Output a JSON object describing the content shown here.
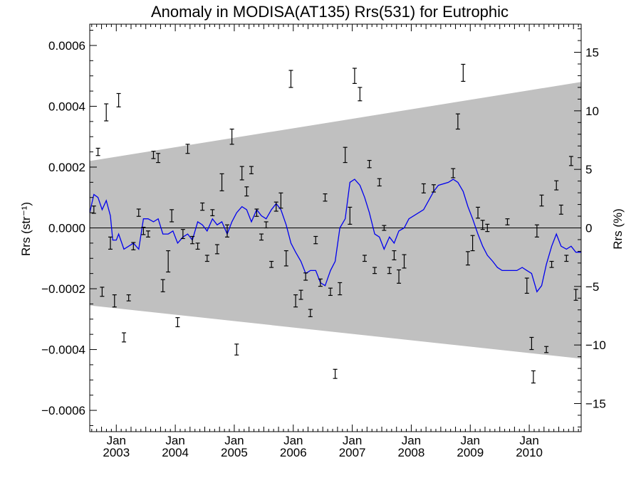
{
  "chart_data": {
    "type": "scatter",
    "title": "Anomaly in MODISA(AT135) Rrs(531) for Eutrophic",
    "ylabel": "Rrs (str⁻¹)",
    "ylabel_right": "Rrs (%)",
    "x_range": [
      2002.55,
      2010.88
    ],
    "ylim": [
      -0.00067,
      0.00067
    ],
    "ylim_right": [
      -17.4,
      17.4
    ],
    "y_ticks": [
      {
        "value": 0.0006,
        "label": "0.0006"
      },
      {
        "value": 0.0004,
        "label": "0.0004"
      },
      {
        "value": 0.0002,
        "label": "0.0002"
      },
      {
        "value": 0.0,
        "label": "0.0000"
      },
      {
        "value": -0.0002,
        "label": "−0.0002"
      },
      {
        "value": -0.0004,
        "label": "−0.0004"
      },
      {
        "value": -0.0006,
        "label": "−0.0006"
      }
    ],
    "y_right_ticks": [
      {
        "value": 15,
        "label": "15"
      },
      {
        "value": 10,
        "label": "10"
      },
      {
        "value": 5,
        "label": "5"
      },
      {
        "value": 0,
        "label": "0"
      },
      {
        "value": -5,
        "label": "−5"
      },
      {
        "value": -10,
        "label": "−10"
      },
      {
        "value": -15,
        "label": "−15"
      }
    ],
    "x_ticks": [
      {
        "value": 2003.0,
        "month": "Jan",
        "year": "2003"
      },
      {
        "value": 2004.0,
        "month": "Jan",
        "year": "2004"
      },
      {
        "value": 2005.0,
        "month": "Jan",
        "year": "2005"
      },
      {
        "value": 2006.0,
        "month": "Jan",
        "year": "2006"
      },
      {
        "value": 2007.0,
        "month": "Jan",
        "year": "2007"
      },
      {
        "value": 2008.0,
        "month": "Jan",
        "year": "2008"
      },
      {
        "value": 2009.0,
        "month": "Jan",
        "year": "2009"
      },
      {
        "value": 2010.0,
        "month": "Jan",
        "year": "2010"
      }
    ],
    "band": {
      "upper": [
        [
          2002.55,
          0.00022
        ],
        [
          2010.88,
          0.00048
        ]
      ],
      "lower": [
        [
          2002.55,
          -0.000255
        ],
        [
          2010.88,
          -0.00043
        ]
      ],
      "color": "#c0c0c0"
    },
    "line_color": "#0000ee",
    "series": [
      {
        "kind": "errorbar",
        "points": [
          [
            2002.62,
            6e-05,
            1.2e-05
          ],
          [
            2002.69,
            0.00025,
            1.2e-05
          ],
          [
            2002.76,
            -0.00021,
            1.5e-05
          ],
          [
            2002.83,
            0.00038,
            2.8e-05
          ],
          [
            2002.9,
            -5e-05,
            2e-05
          ],
          [
            2002.97,
            -0.00024,
            2e-05
          ],
          [
            2003.04,
            0.00042,
            2.2e-05
          ],
          [
            2003.13,
            -0.00036,
            1.5e-05
          ],
          [
            2003.21,
            -0.00023,
            1e-05
          ],
          [
            2003.29,
            -6e-05,
            1.2e-05
          ],
          [
            2003.38,
            5e-05,
            1.2e-05
          ],
          [
            2003.46,
            -1e-05,
            1.2e-05
          ],
          [
            2003.54,
            -2e-05,
            1e-05
          ],
          [
            2003.63,
            0.00024,
            1.2e-05
          ],
          [
            2003.71,
            0.00023,
            1.5e-05
          ],
          [
            2003.79,
            -0.00019,
            2e-05
          ],
          [
            2003.88,
            -0.00011,
            3.5e-05
          ],
          [
            2003.94,
            4e-05,
            2e-05
          ],
          [
            2004.04,
            -0.00031,
            1.5e-05
          ],
          [
            2004.13,
            -2e-05,
            1.5e-05
          ],
          [
            2004.21,
            0.00026,
            1.5e-05
          ],
          [
            2004.29,
            -4e-05,
            1.2e-05
          ],
          [
            2004.38,
            -6e-05,
            1e-05
          ],
          [
            2004.46,
            7e-05,
            1.2e-05
          ],
          [
            2004.54,
            -0.0001,
            1e-05
          ],
          [
            2004.63,
            5e-05,
            1e-05
          ],
          [
            2004.71,
            -7e-05,
            1.5e-05
          ],
          [
            2004.79,
            0.00015,
            2.8e-05
          ],
          [
            2004.88,
            -1e-05,
            2e-05
          ],
          [
            2004.96,
            0.0003,
            2.5e-05
          ],
          [
            2005.04,
            -0.0004,
            1.8e-05
          ],
          [
            2005.13,
            0.00018,
            2.2e-05
          ],
          [
            2005.21,
            0.00012,
            1.5e-05
          ],
          [
            2005.29,
            0.00019,
            1.2e-05
          ],
          [
            2005.38,
            5e-05,
            1.2e-05
          ],
          [
            2005.46,
            -3e-05,
            1e-05
          ],
          [
            2005.54,
            1e-05,
            1e-05
          ],
          [
            2005.63,
            -0.00012,
            1e-05
          ],
          [
            2005.71,
            7e-05,
            1.5e-05
          ],
          [
            2005.79,
            9e-05,
            2.5e-05
          ],
          [
            2005.88,
            -0.0001,
            2.5e-05
          ],
          [
            2005.96,
            0.00049,
            2.8e-05
          ],
          [
            2006.04,
            -0.00024,
            2e-05
          ],
          [
            2006.13,
            -0.00022,
            1.5e-05
          ],
          [
            2006.21,
            -0.00016,
            1.2e-05
          ],
          [
            2006.29,
            -0.00028,
            1.2e-05
          ],
          [
            2006.38,
            -4e-05,
            1.2e-05
          ],
          [
            2006.46,
            -0.00018,
            1.2e-05
          ],
          [
            2006.54,
            0.0001,
            1.2e-05
          ],
          [
            2006.63,
            -0.00021,
            1.2e-05
          ],
          [
            2006.71,
            -0.00048,
            1.5e-05
          ],
          [
            2006.79,
            -0.0002,
            2e-05
          ],
          [
            2006.88,
            0.00024,
            2.5e-05
          ],
          [
            2006.96,
            4e-05,
            2.8e-05
          ],
          [
            2007.04,
            0.0005,
            2.5e-05
          ],
          [
            2007.13,
            0.00044,
            2.2e-05
          ],
          [
            2007.21,
            -0.0001,
            1e-05
          ],
          [
            2007.29,
            0.00021,
            1.2e-05
          ],
          [
            2007.38,
            -0.00014,
            1e-05
          ],
          [
            2007.46,
            0.00015,
            1.2e-05
          ],
          [
            2007.54,
            0.0,
            8e-06
          ],
          [
            2007.63,
            -0.00014,
            1e-05
          ],
          [
            2007.71,
            -9e-05,
            1.5e-05
          ],
          [
            2007.79,
            -0.00016,
            2.2e-05
          ],
          [
            2007.88,
            -0.00011,
            2.2e-05
          ],
          [
            2008.21,
            0.00013,
            1.5e-05
          ],
          [
            2008.38,
            0.00013,
            1.2e-05
          ],
          [
            2008.71,
            0.00018,
            1.5e-05
          ],
          [
            2008.79,
            0.00035,
            2.5e-05
          ],
          [
            2008.88,
            0.00051,
            2.8e-05
          ],
          [
            2008.96,
            -0.0001,
            2.2e-05
          ],
          [
            2009.04,
            -5e-05,
            2.5e-05
          ],
          [
            2009.13,
            5e-05,
            1.8e-05
          ],
          [
            2009.21,
            1e-05,
            1.5e-05
          ],
          [
            2009.29,
            0.0,
            1.2e-05
          ],
          [
            2009.63,
            2e-05,
            1e-05
          ],
          [
            2009.96,
            -0.00019,
            2.5e-05
          ],
          [
            2010.04,
            -0.00038,
            2e-05
          ],
          [
            2010.07,
            -0.00049,
            2e-05
          ],
          [
            2010.13,
            -1e-05,
            2e-05
          ],
          [
            2010.21,
            9e-05,
            1.8e-05
          ],
          [
            2010.29,
            -0.0004,
            1e-05
          ],
          [
            2010.38,
            -0.00012,
            1e-05
          ],
          [
            2010.46,
            0.00014,
            1.5e-05
          ],
          [
            2010.54,
            6e-05,
            1.5e-05
          ],
          [
            2010.63,
            -0.0001,
            1e-05
          ],
          [
            2010.71,
            0.00022,
            1.5e-05
          ],
          [
            2010.79,
            -0.00022,
            1.8e-05
          ]
        ]
      },
      {
        "kind": "line",
        "points": [
          [
            2002.55,
            5e-05
          ],
          [
            2002.62,
            0.00011
          ],
          [
            2002.69,
            0.0001
          ],
          [
            2002.76,
            6e-05
          ],
          [
            2002.83,
            9e-05
          ],
          [
            2002.9,
            4e-05
          ],
          [
            2002.94,
            -4e-05
          ],
          [
            2003.0,
            -4e-05
          ],
          [
            2003.04,
            -2e-05
          ],
          [
            2003.13,
            -7e-05
          ],
          [
            2003.21,
            -6e-05
          ],
          [
            2003.29,
            -5e-05
          ],
          [
            2003.38,
            -7e-05
          ],
          [
            2003.46,
            3e-05
          ],
          [
            2003.54,
            3e-05
          ],
          [
            2003.63,
            2e-05
          ],
          [
            2003.71,
            3e-05
          ],
          [
            2003.79,
            -2e-05
          ],
          [
            2003.88,
            -2e-05
          ],
          [
            2003.96,
            -1e-05
          ],
          [
            2004.04,
            -5e-05
          ],
          [
            2004.13,
            -3e-05
          ],
          [
            2004.21,
            -2e-05
          ],
          [
            2004.29,
            -4e-05
          ],
          [
            2004.38,
            2e-05
          ],
          [
            2004.46,
            1e-05
          ],
          [
            2004.54,
            -1e-05
          ],
          [
            2004.63,
            3e-05
          ],
          [
            2004.71,
            1e-05
          ],
          [
            2004.79,
            2e-05
          ],
          [
            2004.88,
            -2e-05
          ],
          [
            2004.96,
            2e-05
          ],
          [
            2005.04,
            5e-05
          ],
          [
            2005.13,
            7e-05
          ],
          [
            2005.21,
            6e-05
          ],
          [
            2005.29,
            2e-05
          ],
          [
            2005.38,
            6e-05
          ],
          [
            2005.46,
            4e-05
          ],
          [
            2005.54,
            3e-05
          ],
          [
            2005.63,
            6e-05
          ],
          [
            2005.71,
            8e-05
          ],
          [
            2005.79,
            6e-05
          ],
          [
            2005.88,
            1e-05
          ],
          [
            2005.96,
            -5e-05
          ],
          [
            2006.04,
            -8e-05
          ],
          [
            2006.13,
            -0.00011
          ],
          [
            2006.21,
            -0.00015
          ],
          [
            2006.29,
            -0.00014
          ],
          [
            2006.38,
            -0.00014
          ],
          [
            2006.46,
            -0.00018
          ],
          [
            2006.54,
            -0.00019
          ],
          [
            2006.63,
            -0.00014
          ],
          [
            2006.71,
            -0.00011
          ],
          [
            2006.79,
            0.0
          ],
          [
            2006.88,
            3e-05
          ],
          [
            2006.96,
            0.00015
          ],
          [
            2007.04,
            0.00016
          ],
          [
            2007.13,
            0.00014
          ],
          [
            2007.21,
            0.0001
          ],
          [
            2007.29,
            5e-05
          ],
          [
            2007.38,
            -2e-05
          ],
          [
            2007.46,
            -3e-05
          ],
          [
            2007.54,
            -7e-05
          ],
          [
            2007.63,
            -3e-05
          ],
          [
            2007.71,
            -5e-05
          ],
          [
            2007.79,
            -1e-05
          ],
          [
            2007.88,
            0.0
          ],
          [
            2007.96,
            3e-05
          ],
          [
            2008.21,
            6e-05
          ],
          [
            2008.38,
            0.00012
          ],
          [
            2008.46,
            0.00014
          ],
          [
            2008.63,
            0.00015
          ],
          [
            2008.71,
            0.00016
          ],
          [
            2008.79,
            0.00015
          ],
          [
            2008.88,
            0.00012
          ],
          [
            2008.96,
            7e-05
          ],
          [
            2009.04,
            3e-05
          ],
          [
            2009.13,
            -2e-05
          ],
          [
            2009.21,
            -6e-05
          ],
          [
            2009.29,
            -9e-05
          ],
          [
            2009.38,
            -0.00011
          ],
          [
            2009.46,
            -0.00013
          ],
          [
            2009.54,
            -0.00014
          ],
          [
            2009.63,
            -0.00014
          ],
          [
            2009.71,
            -0.00014
          ],
          [
            2009.79,
            -0.00014
          ],
          [
            2009.88,
            -0.00013
          ],
          [
            2009.96,
            -0.00014
          ],
          [
            2010.04,
            -0.00015
          ],
          [
            2010.13,
            -0.00021
          ],
          [
            2010.21,
            -0.00019
          ],
          [
            2010.29,
            -0.00012
          ],
          [
            2010.38,
            -6e-05
          ],
          [
            2010.46,
            -2e-05
          ],
          [
            2010.54,
            -6e-05
          ],
          [
            2010.63,
            -7e-05
          ],
          [
            2010.71,
            -6e-05
          ],
          [
            2010.79,
            -8e-05
          ],
          [
            2010.88,
            -8e-05
          ]
        ]
      }
    ]
  }
}
